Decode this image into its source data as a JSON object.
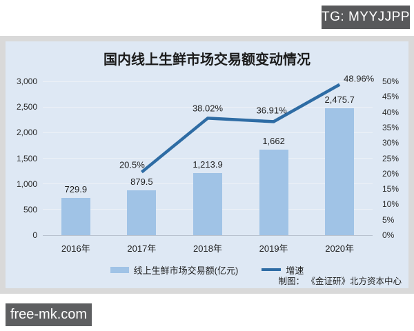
{
  "badges": {
    "tg": "TG: MYYJJPP",
    "watermark": "free-mk.com"
  },
  "chart": {
    "title": "国内线上生鲜市场交易额变动情况",
    "credit": "制图：  《金证研》北方资本中心"
  },
  "colors": {
    "panel_bg": "#dee8f4",
    "band_bg": "#d9d9d9",
    "bar": "#a0c3e6",
    "line": "#2e6ca4",
    "badge_bg": "#58595b"
  },
  "chart_data": {
    "type": "combo-bar-line",
    "title": "国内线上生鲜市场交易额变动情况",
    "categories": [
      "2016年",
      "2017年",
      "2018年",
      "2019年",
      "2020年"
    ],
    "series": [
      {
        "name": "线上生鲜市场交易额(亿元)",
        "type": "bar",
        "axis": "left",
        "color": "#a0c3e6",
        "values": [
          729.9,
          879.5,
          1213.9,
          1662,
          2475.7
        ],
        "labels": [
          "729.9",
          "879.5",
          "1,213.9",
          "1,662",
          "2,475.7"
        ]
      },
      {
        "name": "增速",
        "type": "line",
        "axis": "right",
        "color": "#2e6ca4",
        "values": [
          null,
          20.5,
          38.02,
          36.91,
          48.96
        ],
        "labels": [
          null,
          "20.5%",
          "38.02%",
          "36.91%",
          "48.96%"
        ]
      }
    ],
    "left_axis": {
      "min": 0,
      "max": 3000,
      "step": 500,
      "tick_labels": [
        "0",
        "500",
        "1,000",
        "1,500",
        "2,000",
        "2,500",
        "3,000"
      ]
    },
    "right_axis": {
      "min": 0,
      "max": 50,
      "step": 5,
      "tick_labels": [
        "0%",
        "5%",
        "10%",
        "15%",
        "20%",
        "25%",
        "30%",
        "35%",
        "40%",
        "45%",
        "50%"
      ]
    },
    "grid": true,
    "legend_position": "bottom"
  }
}
